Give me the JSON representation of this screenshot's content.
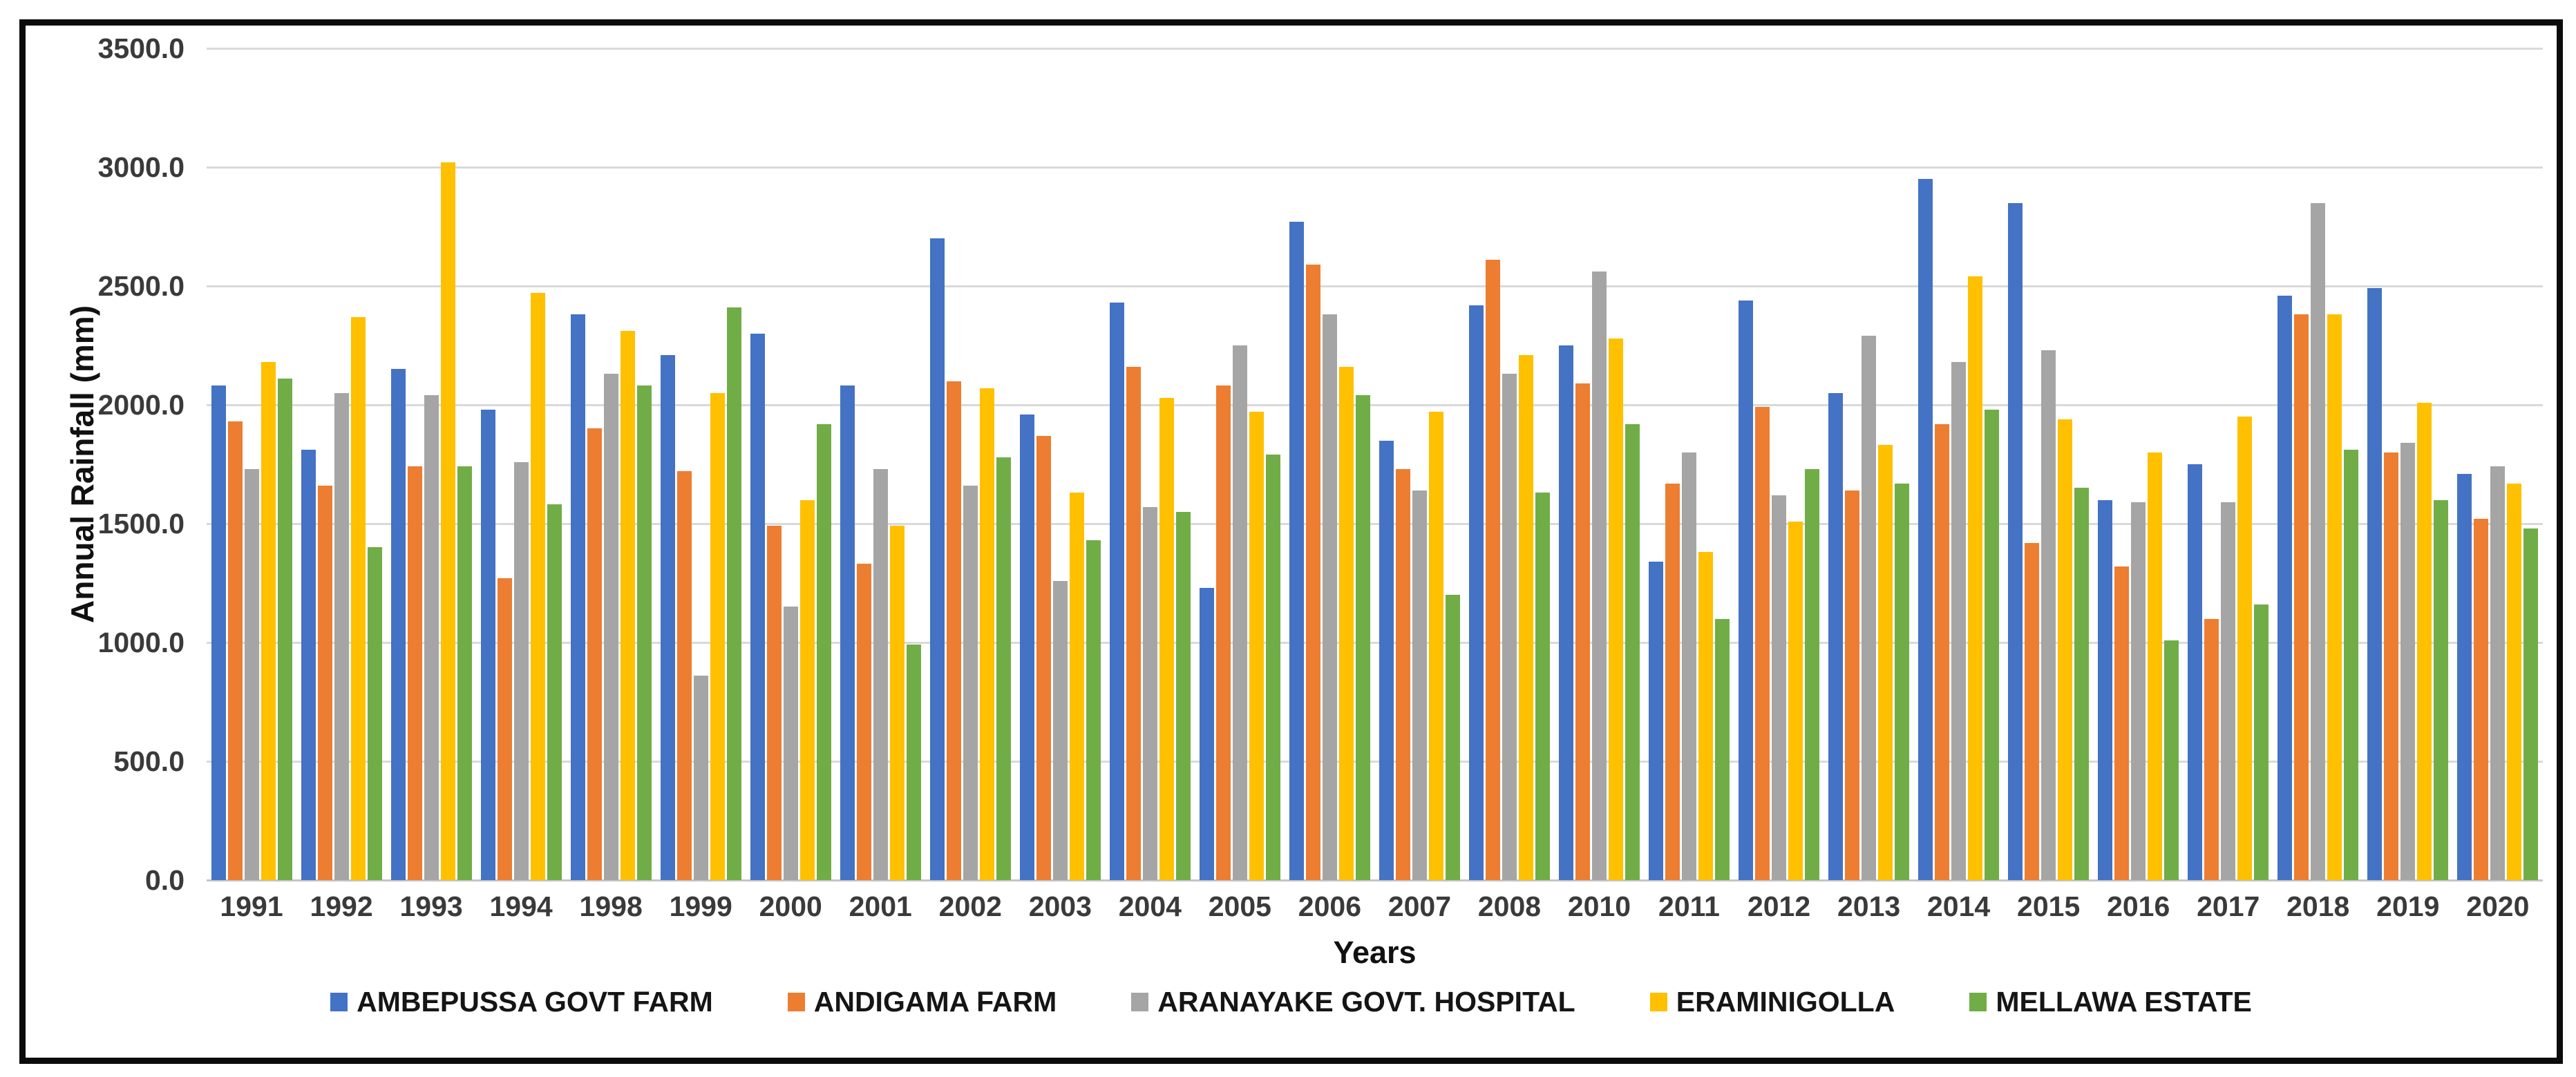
{
  "axes": {
    "y_title": "Annual Rainfall (mm)",
    "x_title": "Years"
  },
  "chart_data": {
    "type": "bar",
    "title": "",
    "xlabel": "Years",
    "ylabel": "Annual Rainfall (mm)",
    "ylim": [
      0,
      3500
    ],
    "ytick_step": 500,
    "ytick_decimals": 1,
    "grid": true,
    "legend_position": "bottom",
    "gridline_color": "#d9d9d9",
    "categories": [
      "1991",
      "1992",
      "1993",
      "1994",
      "1998",
      "1999",
      "2000",
      "2001",
      "2002",
      "2003",
      "2004",
      "2005",
      "2006",
      "2007",
      "2008",
      "2010",
      "2011",
      "2012",
      "2013",
      "2014",
      "2015",
      "2016",
      "2017",
      "2018",
      "2019",
      "2020"
    ],
    "series": [
      {
        "name": "AMBEPUSSA GOVT FARM",
        "color": "#4472C4",
        "values": [
          2080,
          1810,
          2150,
          1980,
          2380,
          2210,
          2300,
          2080,
          2700,
          1960,
          2430,
          1230,
          2770,
          1850,
          2420,
          2250,
          1340,
          2440,
          2050,
          2950,
          2850,
          1600,
          1750,
          2460,
          2490,
          1710
        ]
      },
      {
        "name": "ANDIGAMA FARM",
        "color": "#ED7D31",
        "values": [
          1930,
          1660,
          1740,
          1270,
          1900,
          1720,
          1490,
          1330,
          2100,
          1870,
          2160,
          2080,
          2590,
          1730,
          2610,
          2090,
          1670,
          1990,
          1640,
          1920,
          1420,
          1320,
          1100,
          2380,
          1800,
          1520
        ]
      },
      {
        "name": "ARANAYAKE GOVT. HOSPITAL",
        "color": "#A5A5A5",
        "values": [
          1730,
          2050,
          2040,
          1760,
          2130,
          860,
          1150,
          1730,
          1660,
          1260,
          1570,
          2250,
          2380,
          1640,
          2130,
          2560,
          1800,
          1620,
          2290,
          2180,
          2230,
          1590,
          1590,
          2850,
          1840,
          1740
        ]
      },
      {
        "name": "ERAMINIGOLLA",
        "color": "#FFC000",
        "values": [
          2180,
          2370,
          3020,
          2470,
          2310,
          2050,
          1600,
          1490,
          2070,
          1630,
          2030,
          1970,
          2160,
          1970,
          2210,
          2280,
          1380,
          1510,
          1830,
          2540,
          1940,
          1800,
          1950,
          2380,
          2010,
          1670
        ]
      },
      {
        "name": "MELLAWA ESTATE",
        "color": "#70AD47",
        "values": [
          2110,
          1400,
          1740,
          1580,
          2080,
          2410,
          1920,
          990,
          1780,
          1430,
          1550,
          1790,
          2040,
          1200,
          1630,
          1920,
          1100,
          1730,
          1670,
          1980,
          1650,
          1010,
          1160,
          1810,
          1600,
          1480
        ]
      }
    ]
  }
}
